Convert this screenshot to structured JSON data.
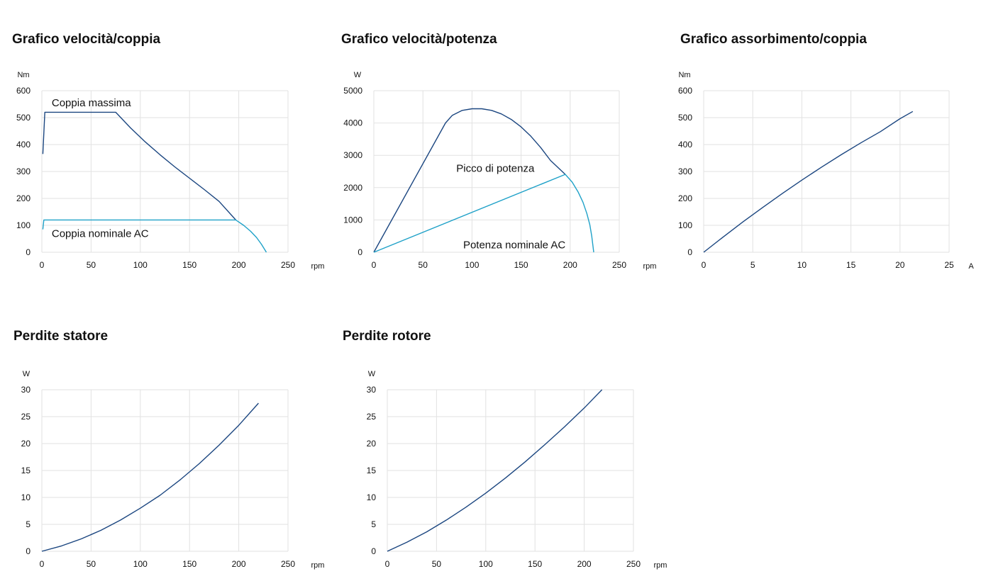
{
  "colors": {
    "dark": "#1b4680",
    "light": "#1fa1c8",
    "grid": "#e2e2e2"
  },
  "chart_data": [
    {
      "type": "line",
      "title": "Grafico velocità/coppia",
      "ylabel": "Nm",
      "xlabel": "rpm",
      "xlim": [
        0,
        250
      ],
      "ylim": [
        0,
        600
      ],
      "xticks": [
        0,
        50,
        100,
        150,
        200,
        250
      ],
      "yticks": [
        0,
        100,
        200,
        300,
        400,
        500,
        600
      ],
      "grid": true,
      "series": [
        {
          "name": "Coppia massima",
          "color": "dark",
          "x": [
            1,
            3,
            75,
            90,
            105,
            120,
            135,
            150,
            165,
            180,
            197
          ],
          "y": [
            365,
            520,
            520,
            462,
            410,
            362,
            317,
            275,
            233,
            189,
            120
          ]
        },
        {
          "name": "Coppia nominale AC",
          "color": "light",
          "x": [
            1,
            2,
            197,
            205,
            212,
            218,
            223,
            228
          ],
          "y": [
            85,
            120,
            120,
            100,
            78,
            55,
            30,
            0
          ]
        }
      ],
      "annotations": [
        {
          "text": "Coppia massima",
          "x": 10,
          "y": 555
        },
        {
          "text": "Coppia nominale AC",
          "x": 10,
          "y": 70
        }
      ]
    },
    {
      "type": "line",
      "title": "Grafico velocità/potenza",
      "ylabel": "W",
      "xlabel": "rpm",
      "xlim": [
        0,
        250
      ],
      "ylim": [
        0,
        5000
      ],
      "xticks": [
        0,
        50,
        100,
        150,
        200,
        250
      ],
      "yticks": [
        0,
        1000,
        2000,
        3000,
        4000,
        5000
      ],
      "grid": true,
      "series": [
        {
          "name": "",
          "color": "dark",
          "x": [
            0,
            73,
            80,
            90,
            100,
            110,
            120,
            130,
            140,
            150,
            160,
            170,
            180,
            195
          ],
          "y": [
            0,
            4000,
            4240,
            4390,
            4440,
            4440,
            4390,
            4280,
            4110,
            3880,
            3590,
            3240,
            2840,
            2410
          ]
        },
        {
          "name": "",
          "color": "light",
          "x": [
            0,
            195,
            202,
            208,
            213,
            217,
            220,
            222,
            224
          ],
          "y": [
            0,
            2410,
            2170,
            1870,
            1550,
            1200,
            850,
            500,
            0
          ]
        }
      ],
      "annotations": [
        {
          "text": "Picco di potenza",
          "x": 84,
          "y": 2600
        },
        {
          "text": "Potenza nominale AC",
          "x": 91,
          "y": 230
        }
      ]
    },
    {
      "type": "line",
      "title": "Grafico assorbimento/coppia",
      "ylabel": "Nm",
      "xlabel": "A",
      "xlim": [
        0,
        25
      ],
      "ylim": [
        0,
        600
      ],
      "xticks": [
        0,
        5,
        10,
        15,
        20,
        25
      ],
      "yticks": [
        0,
        100,
        200,
        300,
        400,
        500,
        600
      ],
      "grid": true,
      "series": [
        {
          "name": "",
          "color": "dark",
          "x": [
            0,
            2,
            4,
            6,
            8,
            10,
            12,
            14,
            16,
            18,
            20,
            21.3
          ],
          "y": [
            0,
            57,
            113,
            166,
            218,
            268,
            316,
            362,
            406,
            448,
            496,
            523
          ]
        }
      ],
      "annotations": []
    },
    {
      "type": "line",
      "title": "Perdite statore",
      "ylabel": "W",
      "xlabel": "rpm",
      "xlim": [
        0,
        250
      ],
      "ylim": [
        0,
        30
      ],
      "xticks": [
        0,
        50,
        100,
        150,
        200,
        250
      ],
      "yticks": [
        0,
        5,
        10,
        15,
        20,
        25,
        30
      ],
      "grid": true,
      "series": [
        {
          "name": "",
          "color": "dark",
          "x": [
            0,
            20,
            40,
            60,
            80,
            100,
            120,
            140,
            160,
            180,
            200,
            220
          ],
          "y": [
            0,
            1.0,
            2.3,
            3.9,
            5.8,
            8.0,
            10.4,
            13.2,
            16.3,
            19.7,
            23.4,
            27.5
          ]
        }
      ],
      "annotations": []
    },
    {
      "type": "line",
      "title": "Perdite rotore",
      "ylabel": "W",
      "xlabel": "rpm",
      "xlim": [
        0,
        250
      ],
      "ylim": [
        0,
        30
      ],
      "xticks": [
        0,
        50,
        100,
        150,
        200,
        250
      ],
      "yticks": [
        0,
        5,
        10,
        15,
        20,
        25,
        30
      ],
      "grid": true,
      "series": [
        {
          "name": "",
          "color": "dark",
          "x": [
            0,
            20,
            40,
            60,
            80,
            100,
            120,
            140,
            160,
            180,
            200,
            218
          ],
          "y": [
            0,
            1.7,
            3.6,
            5.8,
            8.2,
            10.8,
            13.6,
            16.6,
            19.8,
            23.1,
            26.6,
            30
          ]
        }
      ],
      "annotations": []
    }
  ]
}
